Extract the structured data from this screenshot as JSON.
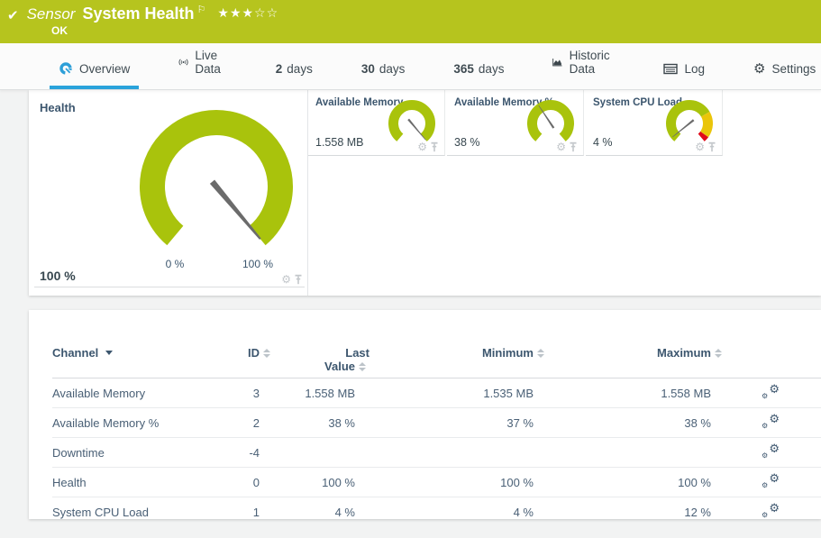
{
  "window": {
    "type_label": "Sensor",
    "title": "System Health",
    "status": "OK",
    "stars": "★★★☆☆"
  },
  "tabs": [
    {
      "label": "Overview",
      "active": true
    },
    {
      "label": "Live Data"
    },
    {
      "num": "2",
      "label": "days"
    },
    {
      "num": "30",
      "label": "days"
    },
    {
      "num": "365",
      "label": "days"
    },
    {
      "label": "Historic Data"
    },
    {
      "label": "Log"
    },
    {
      "label": "Settings"
    }
  ],
  "gauges": {
    "health": {
      "title": "Health",
      "value": "100 %",
      "scale_min": "0 %",
      "scale_max": "100 %",
      "percent": 100
    },
    "available_memory": {
      "title": "Available Memory",
      "value": "1.558 MB",
      "percent": 100
    },
    "available_memory_pct": {
      "title": "Available Memory %",
      "value": "38 %",
      "percent": 38
    },
    "system_cpu_load": {
      "title": "System CPU Load",
      "value": "4 %",
      "percent": 4
    }
  },
  "table": {
    "header": {
      "channel": "Channel",
      "id": "ID",
      "last_value_line1": "Last",
      "last_value_line2": "Value",
      "minimum": "Minimum",
      "maximum": "Maximum"
    },
    "rows": [
      {
        "channel": "Available Memory",
        "id": "3",
        "last": "1.558 MB",
        "min": "1.535 MB",
        "max": "1.558 MB"
      },
      {
        "channel": "Available Memory %",
        "id": "2",
        "last": "38 %",
        "min": "37 %",
        "max": "38 %"
      },
      {
        "channel": "Downtime",
        "id": "-4",
        "last": "",
        "min": "",
        "max": ""
      },
      {
        "channel": "Health",
        "id": "0",
        "last": "100 %",
        "min": "100 %",
        "max": "100 %"
      },
      {
        "channel": "System CPU Load",
        "id": "1",
        "last": "4 %",
        "min": "4 %",
        "max": "12 %"
      }
    ]
  },
  "colors": {
    "header_green": "#b6c41e",
    "gauge_green": "#a9c30c",
    "gauge_amber": "#eac50a",
    "gauge_red": "#e00a18",
    "accent_blue": "#2aa3db"
  }
}
